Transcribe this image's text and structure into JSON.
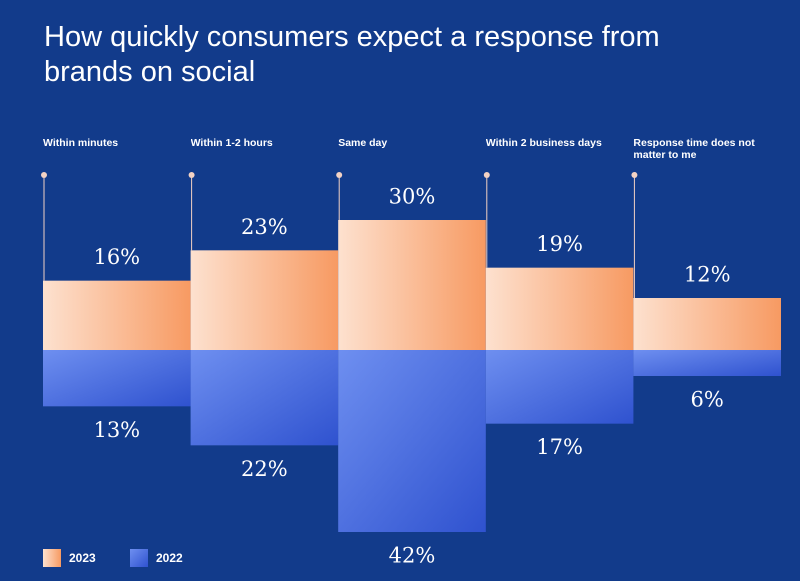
{
  "chart_data": {
    "type": "diverging-bar",
    "title": "How quickly consumers expect a response from brands on social",
    "categories": [
      "Within minutes",
      "Within 1-2 hours",
      "Same day",
      "Within 2 business days",
      "Response time does not matter to me"
    ],
    "series": [
      {
        "name": "2023",
        "color": "#f79a62",
        "values": [
          16,
          23,
          30,
          19,
          12
        ],
        "value_labels": [
          "16%",
          "23%",
          "30%",
          "19%",
          "12%"
        ]
      },
      {
        "name": "2022",
        "color": "#2f52cf",
        "values": [
          13,
          22,
          42,
          17,
          6
        ],
        "value_labels": [
          "13%",
          "22%",
          "42%",
          "17%",
          "6%"
        ]
      }
    ]
  }
}
